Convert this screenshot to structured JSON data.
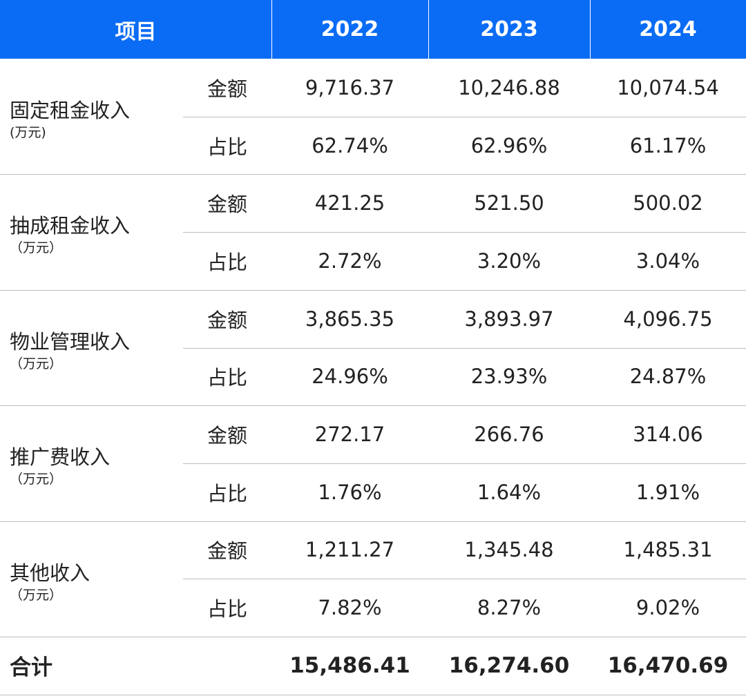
{
  "header": [
    "项目",
    "2022",
    "2023",
    "2024"
  ],
  "groups": [
    {
      "label": "固定租金收入",
      "unit": "(万元)",
      "rows": [
        {
          "metric": "金额",
          "values": [
            "9,716.37",
            "10,246.88",
            "10,074.54"
          ]
        },
        {
          "metric": "占比",
          "values": [
            "62.74%",
            "62.96%",
            "61.17%"
          ]
        }
      ]
    },
    {
      "label": "抽成租金收入",
      "unit": "（万元）",
      "rows": [
        {
          "metric": "金额",
          "values": [
            "421.25",
            "521.50",
            "500.02"
          ]
        },
        {
          "metric": "占比",
          "values": [
            "2.72%",
            "3.20%",
            "3.04%"
          ]
        }
      ]
    },
    {
      "label": "物业管理收入",
      "unit": "（万元）",
      "rows": [
        {
          "metric": "金额",
          "values": [
            "3,865.35",
            "3,893.97",
            "4,096.75"
          ]
        },
        {
          "metric": "占比",
          "values": [
            "24.96%",
            "23.93%",
            "24.87%"
          ]
        }
      ]
    },
    {
      "label": "推广费收入",
      "unit": "（万元）",
      "rows": [
        {
          "metric": "金额",
          "values": [
            "272.17",
            "266.76",
            "314.06"
          ]
        },
        {
          "metric": "占比",
          "values": [
            "1.76%",
            "1.64%",
            "1.91%"
          ]
        }
      ]
    },
    {
      "label": "其他收入",
      "unit": "（万元）",
      "rows": [
        {
          "metric": "金额",
          "values": [
            "1,211.27",
            "1,345.48",
            "1,485.31"
          ]
        },
        {
          "metric": "占比",
          "values": [
            "7.82%",
            "8.27%",
            "9.02%"
          ]
        }
      ]
    }
  ],
  "total": {
    "label": "合计",
    "values": [
      "15,486.41",
      "16,274.60",
      "16,470.69"
    ]
  }
}
